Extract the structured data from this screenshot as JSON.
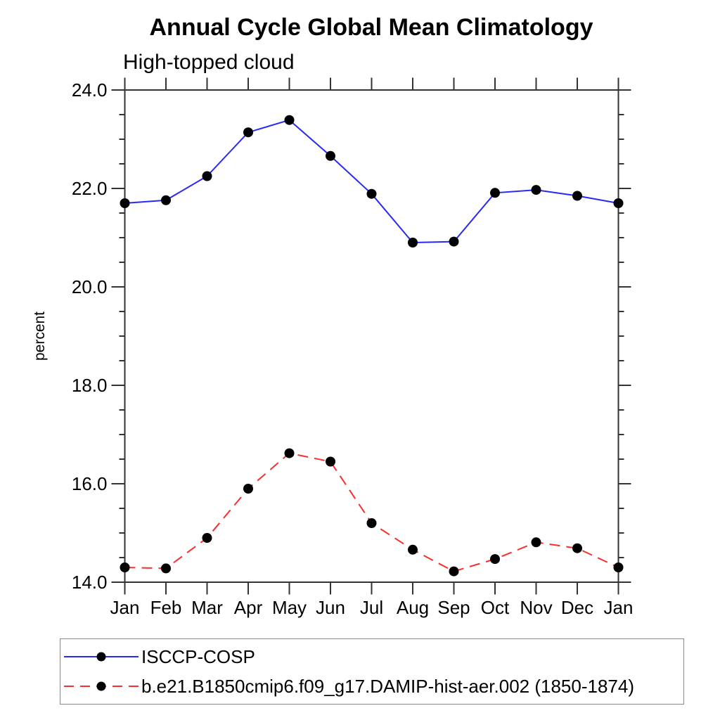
{
  "page": {
    "title": "Annual Cycle Global Mean Climatology",
    "subtitle": "High-topped cloud"
  },
  "chart_data": {
    "type": "line",
    "title": "Annual Cycle Global Mean Climatology",
    "subtitle": "High-topped cloud",
    "xlabel": "",
    "ylabel": "percent",
    "x_categories": [
      "Jan",
      "Feb",
      "Mar",
      "Apr",
      "May",
      "Jun",
      "Jul",
      "Aug",
      "Sep",
      "Oct",
      "Nov",
      "Dec",
      "Jan"
    ],
    "ylim": [
      14.0,
      24.0
    ],
    "y_major_ticks": [
      14.0,
      16.0,
      18.0,
      20.0,
      22.0,
      24.0
    ],
    "y_tick_labels": [
      "14.0",
      "16.0",
      "18.0",
      "20.0",
      "22.0",
      "24.0"
    ],
    "y_minor_step": 0.5,
    "grid": false,
    "legend_position": "bottom-left",
    "axis_color": "#333333",
    "marker_color": "#000000",
    "series": [
      {
        "name": "ISCCP-COSP",
        "color": "#2929f5",
        "dash": "solid",
        "marker": "black-dot",
        "values": [
          21.7,
          21.76,
          22.25,
          23.14,
          23.39,
          22.66,
          21.89,
          20.9,
          20.92,
          21.91,
          21.97,
          21.85,
          21.7
        ]
      },
      {
        "name": "b.e21.B1850cmip6.f09_g17.DAMIP-hist-aer.002 (1850-1874)",
        "color": "#fb2d2d",
        "dash": "dashed",
        "marker": "black-dot",
        "values": [
          14.3,
          14.28,
          14.9,
          15.9,
          16.62,
          16.45,
          15.2,
          14.66,
          14.22,
          14.47,
          14.81,
          14.69,
          14.3
        ]
      }
    ]
  }
}
